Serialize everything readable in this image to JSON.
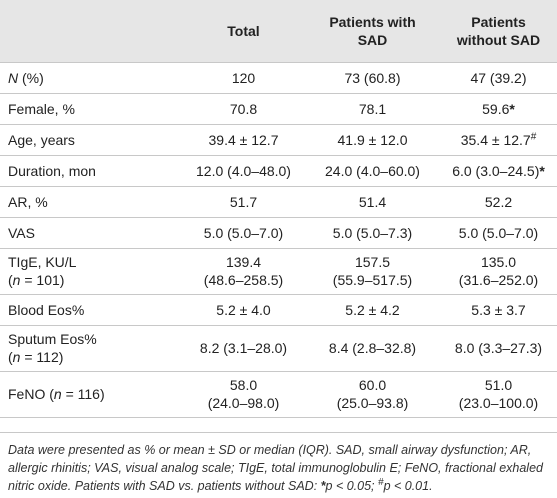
{
  "table": {
    "header": [
      [
        "Total"
      ],
      [
        "Patients with",
        "SAD"
      ],
      [
        "Patients",
        "without SAD"
      ]
    ],
    "rows": [
      {
        "label": [
          [
            {
              "text": "N",
              "style": "italic"
            },
            " (%)"
          ]
        ],
        "cells": [
          [
            [
              "120"
            ]
          ],
          [
            [
              "73 (60.8)"
            ]
          ],
          [
            [
              "47 (39.2)"
            ]
          ]
        ]
      },
      {
        "label": [
          [
            "Female, %"
          ]
        ],
        "cells": [
          [
            [
              "70.8"
            ]
          ],
          [
            [
              "78.1"
            ]
          ],
          [
            [
              "59.6",
              {
                "text": "*",
                "style": "bold"
              }
            ]
          ]
        ]
      },
      {
        "label": [
          [
            "Age, years"
          ]
        ],
        "cells": [
          [
            [
              "39.4 ± 12.7"
            ]
          ],
          [
            [
              "41.9 ± 12.0"
            ]
          ],
          [
            [
              "35.4 ± 12.7",
              {
                "text": "#",
                "style": "sup"
              }
            ]
          ]
        ]
      },
      {
        "label": [
          [
            "Duration, mon"
          ]
        ],
        "cells": [
          [
            [
              "12.0 (4.0–48.0)"
            ]
          ],
          [
            [
              "24.0 (4.0–60.0)"
            ]
          ],
          [
            [
              "6.0 (3.0–24.5)",
              {
                "text": "*",
                "style": "bold"
              }
            ]
          ]
        ]
      },
      {
        "label": [
          [
            "AR, %"
          ]
        ],
        "cells": [
          [
            [
              "51.7"
            ]
          ],
          [
            [
              "51.4"
            ]
          ],
          [
            [
              "52.2"
            ]
          ]
        ]
      },
      {
        "label": [
          [
            "VAS"
          ]
        ],
        "cells": [
          [
            [
              "5.0 (5.0–7.0)"
            ]
          ],
          [
            [
              "5.0 (5.0–7.3)"
            ]
          ],
          [
            [
              "5.0 (5.0–7.0)"
            ]
          ]
        ]
      },
      {
        "label": [
          [
            "TIgE, KU/L"
          ],
          [
            "(",
            {
              "text": "n",
              "style": "italic"
            },
            " = 101)"
          ]
        ],
        "cells": [
          [
            [
              "139.4"
            ],
            [
              "(48.6–258.5)"
            ]
          ],
          [
            [
              "157.5"
            ],
            [
              "(55.9–517.5)"
            ]
          ],
          [
            [
              "135.0"
            ],
            [
              "(31.6–252.0)"
            ]
          ]
        ]
      },
      {
        "label": [
          [
            "Blood Eos%"
          ]
        ],
        "cells": [
          [
            [
              "5.2 ± 4.0"
            ]
          ],
          [
            [
              "5.2 ± 4.2"
            ]
          ],
          [
            [
              "5.3 ± 3.7"
            ]
          ]
        ]
      },
      {
        "label": [
          [
            "Sputum Eos%"
          ],
          [
            "(",
            {
              "text": "n",
              "style": "italic"
            },
            " = 112)"
          ]
        ],
        "cells": [
          [
            [
              "8.2 (3.1–28.0)"
            ]
          ],
          [
            [
              "8.4 (2.8–32.8)"
            ]
          ],
          [
            [
              "8.0 (3.3–27.3)"
            ]
          ]
        ]
      },
      {
        "label": [
          [
            "FeNO (",
            {
              "text": "n",
              "style": "italic"
            },
            " = 116)"
          ]
        ],
        "cells": [
          [
            [
              "58.0"
            ],
            [
              "(24.0–98.0)"
            ]
          ],
          [
            [
              "60.0"
            ],
            [
              "(25.0–93.8)"
            ]
          ],
          [
            [
              "51.0"
            ],
            [
              "(23.0–100.0)"
            ]
          ]
        ]
      }
    ],
    "footnote": [
      "Data were presented as % or mean ± SD or median (IQR). SAD, small airway dysfunction; AR, allergic rhinitis; VAS, visual analog scale; TIgE, total immunoglobulin E; FeNO, fractional exhaled nitric oxide. Patients with SAD vs. patients without SAD: ",
      {
        "text": "*",
        "style": "bold"
      },
      "p < 0.05; ",
      {
        "text": "#",
        "style": "sup"
      },
      "p < 0.01."
    ]
  }
}
